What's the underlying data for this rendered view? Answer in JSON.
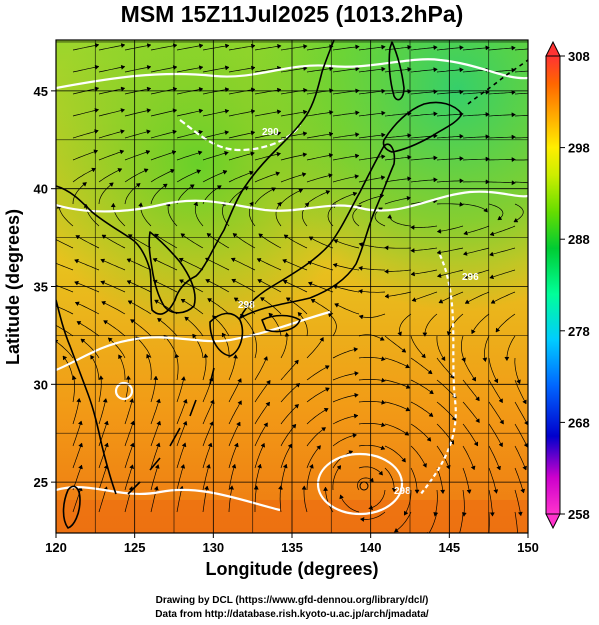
{
  "title": "MSM 15Z11Jul2025 (1013.2hPa)",
  "x_axis": {
    "label": "Longitude (degrees)",
    "range": [
      120,
      150
    ],
    "ticks": [
      "120",
      "125",
      "130",
      "135",
      "140",
      "145",
      "150"
    ]
  },
  "y_axis": {
    "label": "Latitude  (degrees)",
    "range": [
      22.4,
      47.6
    ],
    "ticks": [
      "25",
      "30",
      "35",
      "40",
      "45"
    ]
  },
  "colorbar": {
    "ticks": [
      "308",
      "298",
      "288",
      "278",
      "268",
      "258"
    ],
    "range": [
      258,
      308
    ],
    "colors": [
      "#ff33cc",
      "#cc00cc",
      "#0000cc",
      "#0066ff",
      "#00ccff",
      "#00ff99",
      "#00cc33",
      "#66dd00",
      "#ccee00",
      "#ffee00",
      "#ffaa00",
      "#ff6600",
      "#ff3333"
    ]
  },
  "credits": {
    "line1": "Drawing by DCL (https://www.gfd-dennou.org/library/dcl/)",
    "line2": "Data from http://database.rish.kyoto-u.ac.jp/arch/jmadata/"
  },
  "contour_labels": {
    "a": "298",
    "b": "298",
    "c": "290",
    "d": "296"
  }
}
